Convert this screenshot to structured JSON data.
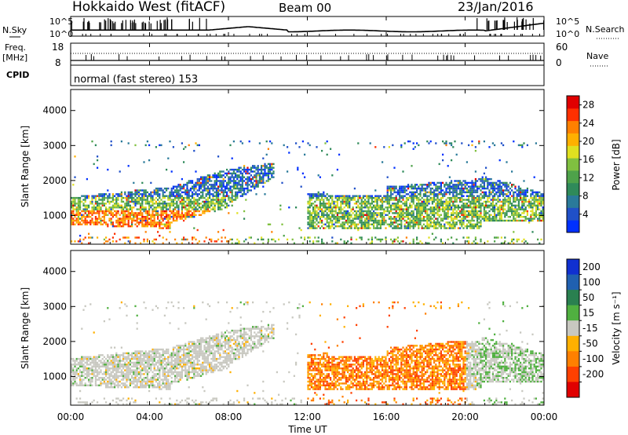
{
  "header": {
    "station": "Hokkaido West (fitACF)",
    "beam": "Beam 00",
    "date": "23/Jan/2016"
  },
  "noise_panel": {
    "left_label": "N.Sky",
    "right_label": "N.Search",
    "ticks_left": [
      "10^5",
      "10^0"
    ],
    "ticks_right": [
      "10^5",
      "10^0"
    ]
  },
  "freq_panel": {
    "left_label_1": "Freq.",
    "left_label_2": "[MHz]",
    "ticks_left": [
      "18",
      "8"
    ],
    "right_label": "Nave",
    "ticks_right": [
      "60",
      "0"
    ]
  },
  "cpid_panel": {
    "label": "CPID",
    "mode_text": "normal (fast stereo) 153"
  },
  "x_axis": {
    "label": "Time UT",
    "ticks": [
      "00:00",
      "04:00",
      "08:00",
      "12:00",
      "16:00",
      "20:00",
      "00:00"
    ]
  },
  "chart_data": [
    {
      "type": "heatmap",
      "quantity": "Power",
      "ylabel": "Slant Range [km]",
      "xlabel": "Time UT",
      "y_ticks": [
        1000,
        2000,
        3000,
        4000
      ],
      "ylim": [
        180,
        4600
      ],
      "xlim_hours": [
        0,
        24
      ],
      "colorbar": {
        "label": "Power [dB]",
        "ticks": [
          4,
          8,
          12,
          16,
          20,
          24,
          28
        ],
        "range": [
          0,
          30
        ]
      },
      "colors": [
        "#0030ff",
        "#2050c8",
        "#2a7a9a",
        "#2f8a5a",
        "#4ea24a",
        "#80c040",
        "#e0e020",
        "#ffb000",
        "#ff8000",
        "#ff3000",
        "#e00000"
      ]
    },
    {
      "type": "heatmap",
      "quantity": "Velocity",
      "ylabel": "Slant Range [km]",
      "xlabel": "Time UT",
      "y_ticks": [
        1000,
        2000,
        3000,
        4000
      ],
      "ylim": [
        180,
        4600
      ],
      "xlim_hours": [
        0,
        24
      ],
      "colorbar": {
        "label": "Velocity [m s⁻¹]",
        "ticks": [
          "200",
          "100",
          "50",
          "15",
          "-15",
          "-50",
          "-100",
          "-200"
        ]
      },
      "colors": [
        "#1030d0",
        "#2060b0",
        "#2a8050",
        "#50b040",
        "#c8c8c0",
        "#ffb000",
        "#ff8000",
        "#ff4000",
        "#e00000"
      ]
    }
  ]
}
